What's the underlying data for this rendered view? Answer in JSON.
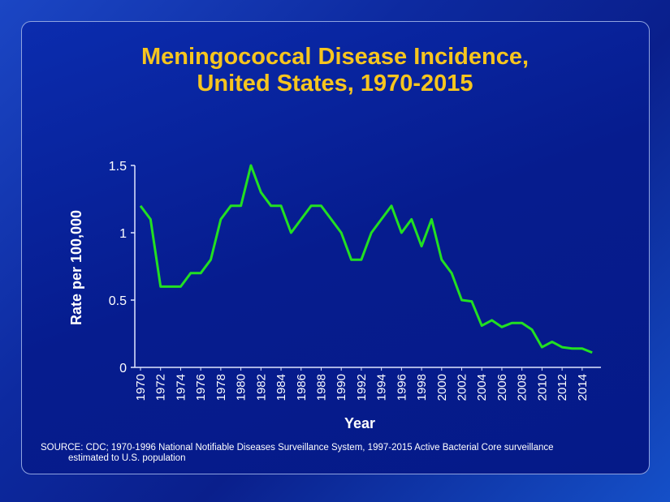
{
  "title_line1": "Meningococcal Disease Incidence,",
  "title_line2": "United States, 1970-2015",
  "source_line1": "SOURCE: CDC; 1970-1996 National Notifiable Diseases Surveillance System, 1997-2015 Active Bacterial Core surveillance",
  "source_line2": "estimated to U.S. population",
  "chart_data": {
    "type": "line",
    "xlabel": "Year",
    "ylabel": "Rate per 100,000",
    "ylim": [
      0,
      1.5
    ],
    "yticks": [
      "0",
      "0.5",
      "1",
      "1.5"
    ],
    "xticks": [
      "1970",
      "1972",
      "1974",
      "1976",
      "1978",
      "1980",
      "1982",
      "1984",
      "1986",
      "1988",
      "1990",
      "1992",
      "1994",
      "1996",
      "1998",
      "2000",
      "2002",
      "2004",
      "2006",
      "2008",
      "2010",
      "2012",
      "2014"
    ],
    "line_color": "#22e022",
    "x": [
      1970,
      1971,
      1972,
      1973,
      1974,
      1975,
      1976,
      1977,
      1978,
      1979,
      1980,
      1981,
      1982,
      1983,
      1984,
      1985,
      1986,
      1987,
      1988,
      1989,
      1990,
      1991,
      1992,
      1993,
      1994,
      1995,
      1996,
      1997,
      1998,
      1999,
      2000,
      2001,
      2002,
      2003,
      2004,
      2005,
      2006,
      2007,
      2008,
      2009,
      2010,
      2011,
      2012,
      2013,
      2014,
      2015
    ],
    "y": [
      1.2,
      1.1,
      0.6,
      0.6,
      0.6,
      0.7,
      0.7,
      0.8,
      1.1,
      1.2,
      1.2,
      1.5,
      1.3,
      1.2,
      1.2,
      1.0,
      1.1,
      1.2,
      1.2,
      1.1,
      1.0,
      0.8,
      0.8,
      1.0,
      1.1,
      1.2,
      1.0,
      1.1,
      0.9,
      1.1,
      0.8,
      0.7,
      0.5,
      0.49,
      0.31,
      0.35,
      0.3,
      0.33,
      0.33,
      0.28,
      0.15,
      0.19,
      0.15,
      0.14,
      0.14,
      0.11
    ]
  }
}
